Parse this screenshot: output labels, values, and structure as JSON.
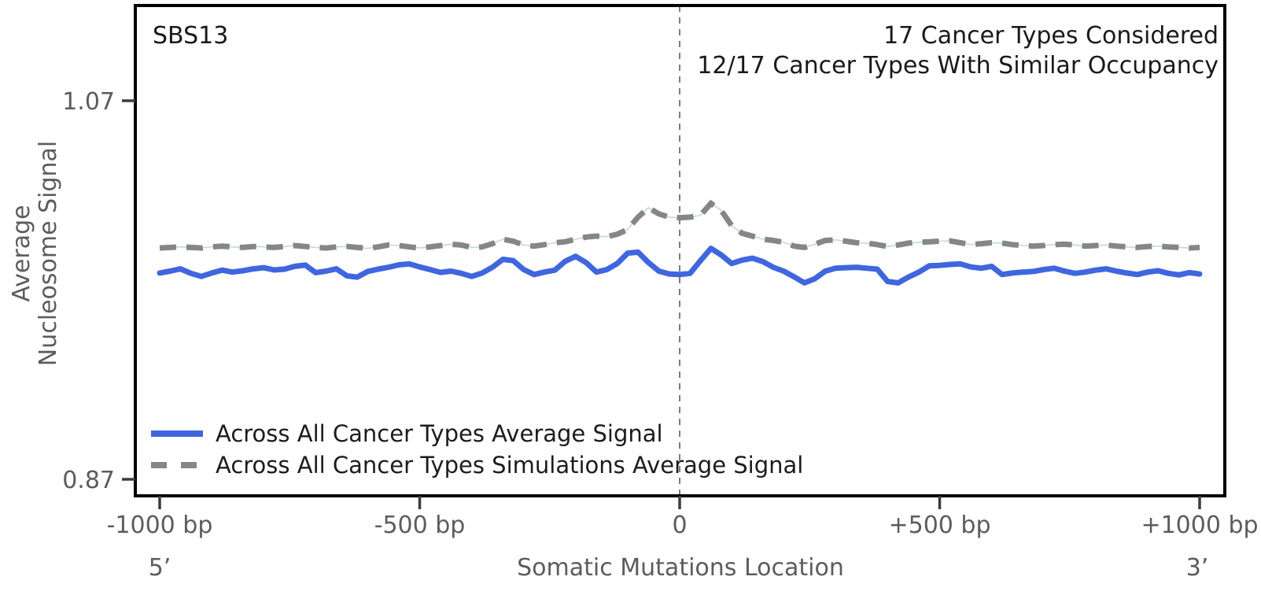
{
  "colors": {
    "real_signal_blue": "#4066DF",
    "simulation_gray": "#868686",
    "simulation_connector": "#bcdbe6",
    "center_line_gray": "#7d7d7d",
    "spine_black": "#000000",
    "tick_mark_gray": "#3c3c3c",
    "label_gray": "#5c5c5c",
    "title_black": "#1a1a1a"
  },
  "chart_data": {
    "type": "line",
    "title": "SBS13",
    "annotation_line1": "17 Cancer Types Considered",
    "annotation_line2": "12/17 Cancer Types With Similar Occupancy",
    "xlabel": "Somatic Mutations Location",
    "ylabel_line1": "Average",
    "ylabel_line2": "Nucleosome Signal",
    "five_prime_label": "5’",
    "three_prime_label": "3’",
    "xlim": [
      -1000,
      1000
    ],
    "ylim_ticks": [
      0.87,
      1.07
    ],
    "grid": false,
    "legend_position": "lower-left-inside",
    "x_ticks": [
      {
        "bp": -1000,
        "label": "-1000 bp"
      },
      {
        "bp": -500,
        "label": "-500 bp"
      },
      {
        "bp": 0,
        "label": "0"
      },
      {
        "bp": 500,
        "label": "+500 bp"
      },
      {
        "bp": 1000,
        "label": "+1000 bp"
      }
    ],
    "y_ticks": [
      {
        "value": 1.07,
        "label": "1.07"
      },
      {
        "value": 0.87,
        "label": "0.87"
      }
    ],
    "center_line_bp": 0,
    "x_start": -1000,
    "x_step": 20,
    "series": [
      {
        "name": "Across All Cancer Types Average Signal",
        "style": "solid",
        "color": "#4066DF",
        "values": [
          0.979,
          0.98,
          0.9812,
          0.9788,
          0.9772,
          0.979,
          0.9805,
          0.9795,
          0.9802,
          0.9812,
          0.9818,
          0.9806,
          0.981,
          0.9825,
          0.9832,
          0.9792,
          0.98,
          0.9812,
          0.9775,
          0.9768,
          0.9798,
          0.981,
          0.982,
          0.9833,
          0.9838,
          0.9822,
          0.9808,
          0.9793,
          0.98,
          0.9788,
          0.9772,
          0.979,
          0.982,
          0.9862,
          0.9855,
          0.9808,
          0.9782,
          0.9795,
          0.9805,
          0.9852,
          0.9878,
          0.9845,
          0.9795,
          0.9808,
          0.984,
          0.9895,
          0.99,
          0.9845,
          0.98,
          0.9785,
          0.9782,
          0.9788,
          0.9855,
          0.992,
          0.9885,
          0.984,
          0.9858,
          0.9868,
          0.985,
          0.982,
          0.98,
          0.977,
          0.9738,
          0.976,
          0.98,
          0.9815,
          0.9818,
          0.982,
          0.9815,
          0.981,
          0.9745,
          0.9738,
          0.9768,
          0.9795,
          0.9828,
          0.983,
          0.9835,
          0.9838,
          0.9822,
          0.9815,
          0.9825,
          0.9782,
          0.979,
          0.9795,
          0.9798,
          0.9808,
          0.9815,
          0.98,
          0.9788,
          0.9795,
          0.9805,
          0.9812,
          0.98,
          0.979,
          0.9782,
          0.9795,
          0.9802,
          0.9788,
          0.978,
          0.9792,
          0.9785
        ]
      },
      {
        "name": "Across All Cancer Types Simulations Average Signal",
        "style": "dashed",
        "color": "#868686",
        "connector_color": "#bcdbe6",
        "values": [
          0.9922,
          0.9925,
          0.9928,
          0.9925,
          0.9922,
          0.9928,
          0.9932,
          0.9928,
          0.9925,
          0.993,
          0.9928,
          0.9925,
          0.993,
          0.9935,
          0.993,
          0.9925,
          0.9922,
          0.9928,
          0.993,
          0.9925,
          0.992,
          0.9928,
          0.9938,
          0.9935,
          0.9928,
          0.9922,
          0.9928,
          0.9935,
          0.9942,
          0.9938,
          0.9925,
          0.9928,
          0.9945,
          0.9968,
          0.9958,
          0.9938,
          0.9932,
          0.994,
          0.995,
          0.9955,
          0.9968,
          0.998,
          0.9985,
          0.9982,
          0.9995,
          1.002,
          1.0085,
          1.0135,
          1.0102,
          1.0085,
          1.0082,
          1.0085,
          1.0095,
          1.0158,
          1.012,
          1.004,
          1.0,
          0.9985,
          0.9968,
          0.9962,
          0.9952,
          0.9932,
          0.9925,
          0.9942,
          0.9962,
          0.9965,
          0.9958,
          0.995,
          0.9948,
          0.994,
          0.993,
          0.9938,
          0.9948,
          0.9952,
          0.9955,
          0.9958,
          0.996,
          0.995,
          0.994,
          0.9945,
          0.995,
          0.9948,
          0.994,
          0.9935,
          0.9932,
          0.9935,
          0.994,
          0.9942,
          0.9938,
          0.9932,
          0.9935,
          0.9938,
          0.9932,
          0.9928,
          0.9925,
          0.993,
          0.9932,
          0.9928,
          0.9925,
          0.9922,
          0.9925
        ]
      }
    ]
  },
  "legend": {
    "item1": "Across All Cancer Types Average Signal",
    "item2": "Across All Cancer Types Simulations Average Signal"
  }
}
